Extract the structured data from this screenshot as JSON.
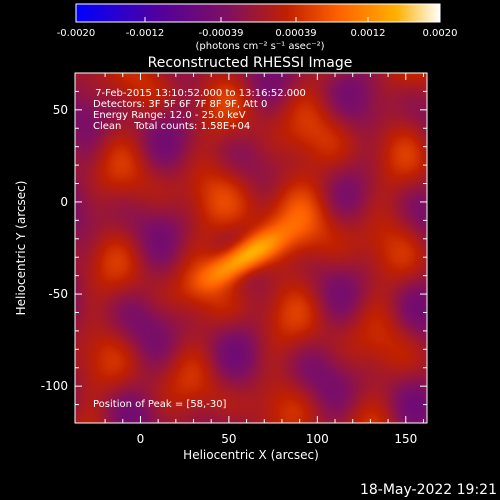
{
  "colorbar": {
    "tick_labels": [
      "-0.0020",
      "-0.0012",
      "-0.00039",
      "0.00039",
      "0.0012",
      "0.0020"
    ],
    "units": "(photons cm⁻² s⁻¹ asec⁻²)",
    "min": -0.002,
    "max": 0.002,
    "colormap": [
      "#0000ff",
      "#5000a0",
      "#801060",
      "#c02000",
      "#ff6000",
      "#ffb000",
      "#ffffff"
    ]
  },
  "chart_data": {
    "type": "heatmap",
    "title": "Reconstructed RHESSI Image",
    "xlabel": "Heliocentric X (arcsec)",
    "ylabel": "Heliocentric Y (arcsec)",
    "xlim": [
      -37,
      162
    ],
    "ylim": [
      -120,
      70
    ],
    "x_ticks": [
      0,
      50,
      100,
      150
    ],
    "y_ticks": [
      50,
      0,
      -50,
      -100
    ],
    "peak_x": 58,
    "peak_y": -30,
    "annotations": [
      " 7-Feb-2015 13:10:52.000 to 13:16:52.000",
      "Detectors: 3F 5F 6F 7F 8F 9F, Att 0",
      "Energy Range: 12.0 - 25.0 keV",
      "Clean    Total counts: 1.58E+04"
    ],
    "peak_label": "Position of Peak = [58,-30]"
  },
  "footer": {
    "timestamp": "18-May-2022 19:21"
  }
}
